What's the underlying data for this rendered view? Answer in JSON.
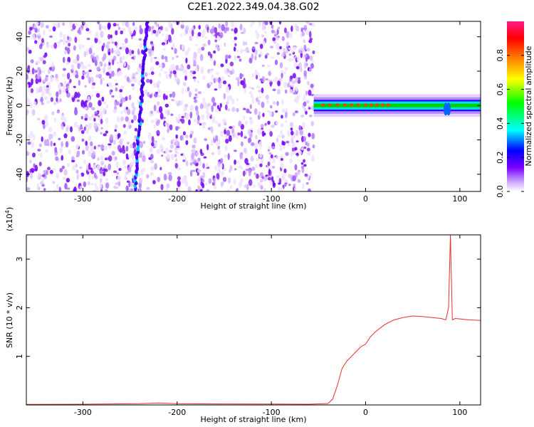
{
  "title": "C2E1.2022.349.04.38.G02",
  "chart_data": [
    {
      "type": "heatmap",
      "xlabel": "Height of straight line (km)",
      "ylabel": "Frequency (Hz)",
      "xlim": [
        -360,
        122
      ],
      "ylim": [
        -50,
        49
      ],
      "xticks": [
        -300,
        -200,
        -100,
        0,
        100
      ],
      "yticks": [
        -40,
        -20,
        0,
        20,
        40
      ],
      "noise_region_x": [
        -360,
        -55
      ],
      "diagonal_streak": {
        "x": [
          -245,
          -232
        ],
        "y": [
          -50,
          49
        ]
      },
      "signal_band": {
        "x": [
          -55,
          122
        ],
        "y_center": 0,
        "y_halfwidth": 3
      },
      "colorbar": {
        "label": "Normalized spectral amplitude",
        "range": [
          0.0,
          1.0
        ],
        "ticks": [
          0.0,
          0.2,
          0.4,
          0.6,
          0.8
        ],
        "tick_labels": [
          "0.0",
          "0.2",
          "0.4",
          "0.6",
          "0.8"
        ],
        "colors": [
          "#ffffff",
          "#c9a0ff",
          "#7a00ff",
          "#0000ff",
          "#00ffff",
          "#00ff00",
          "#ffff00",
          "#ff8000",
          "#ff0000",
          "#ff1a8a"
        ]
      }
    },
    {
      "type": "line",
      "xlabel": "Height of straight line (km)",
      "ylabel": "SNR (10 * v/v)",
      "yscale_label": "(x10",
      "yscale_exp": "4",
      "xlim": [
        -360,
        122
      ],
      "ylim": [
        0,
        35000
      ],
      "xticks": [
        -300,
        -200,
        -100,
        0,
        100
      ],
      "yticks": [
        10000,
        20000,
        30000
      ],
      "ytick_labels": [
        "1",
        "2",
        "3"
      ],
      "color": "#e8302a",
      "series": [
        {
          "x": [
            -360,
            -300,
            -240,
            -220,
            -200,
            -150,
            -100,
            -60,
            -40,
            -35,
            -30,
            -25,
            -20,
            -15,
            -10,
            -5,
            0,
            5,
            10,
            20,
            30,
            40,
            50,
            60,
            70,
            80,
            85,
            88,
            90,
            92,
            95,
            100,
            110,
            122
          ],
          "y": [
            100,
            150,
            250,
            400,
            250,
            200,
            180,
            150,
            300,
            1200,
            4000,
            7500,
            9000,
            10000,
            11000,
            12000,
            12500,
            14000,
            15000,
            16500,
            17500,
            18000,
            18300,
            18200,
            18000,
            17800,
            17500,
            20000,
            35000,
            17500,
            17800,
            17700,
            17500,
            17400
          ]
        }
      ]
    }
  ]
}
